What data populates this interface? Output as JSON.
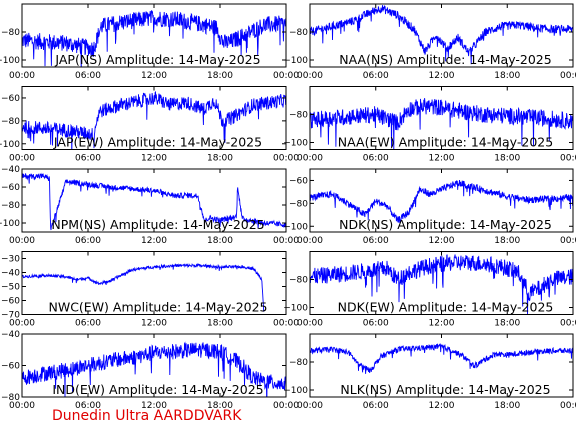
{
  "footer": "Dunedin Ultra AARDDVARK",
  "chart_data": [
    {
      "type": "line",
      "title": "JAP(NS) Amplitude: 14-May-2025",
      "xlim": [
        0,
        24
      ],
      "xticks": [
        "00:00",
        "06:00",
        "12:00",
        "18:00",
        "00:00"
      ],
      "ylim": [
        -105,
        -60
      ],
      "yticks": [
        -100,
        -80
      ],
      "color": "#0000ff",
      "series": [
        {
          "x": [
            0,
            4,
            6.5,
            7.2,
            9,
            12,
            14,
            16,
            17.7,
            18.3,
            19,
            20,
            22,
            24
          ],
          "y": [
            -86,
            -88,
            -92,
            -76,
            -73,
            -70,
            -71,
            -74,
            -77,
            -88,
            -87,
            -83,
            -75,
            -74
          ],
          "noise": 6
        }
      ]
    },
    {
      "type": "line",
      "title": "NAA(NS) Amplitude: 14-May-2025",
      "xlim": [
        0,
        24
      ],
      "xticks": [
        "00:00",
        "06:00",
        "12:00",
        "18:00",
        "00:00"
      ],
      "ylim": [
        -105,
        -60
      ],
      "yticks": [
        -100,
        -80
      ],
      "color": "#0000ff",
      "series": [
        {
          "x": [
            0,
            2,
            4,
            5.5,
            6.5,
            8,
            9.5,
            10.5,
            11.5,
            12.5,
            13.5,
            14.5,
            16,
            17.5,
            19,
            20.5,
            22,
            24
          ],
          "y": [
            -80,
            -76,
            -72,
            -66,
            -63,
            -68,
            -78,
            -94,
            -82,
            -92,
            -84,
            -95,
            -80,
            -76,
            -75,
            -77,
            -78,
            -78
          ],
          "noise": 3
        }
      ]
    },
    {
      "type": "line",
      "title": "JAP(EW) Amplitude: 14-May-2025",
      "xlim": [
        0,
        24
      ],
      "xticks": [
        "00:00",
        "06:00",
        "12:00",
        "18:00",
        "00:00"
      ],
      "ylim": [
        -105,
        -50
      ],
      "yticks": [
        -100,
        -80,
        -60
      ],
      "color": "#0000ff",
      "series": [
        {
          "x": [
            0,
            4,
            6.5,
            7,
            9,
            12,
            13.5,
            15,
            16.5,
            17.5,
            18.2,
            19,
            21,
            24
          ],
          "y": [
            -85,
            -88,
            -92,
            -72,
            -66,
            -60,
            -66,
            -64,
            -70,
            -62,
            -80,
            -78,
            -66,
            -62
          ],
          "noise": 6
        }
      ]
    },
    {
      "type": "line",
      "title": "NAA(EW) Amplitude: 14-May-2025",
      "xlim": [
        0,
        24
      ],
      "xticks": [
        "00:00",
        "06:00",
        "12:00",
        "18:00",
        "00:00"
      ],
      "ylim": [
        -105,
        -60
      ],
      "yticks": [
        -100,
        -80
      ],
      "color": "#0000ff",
      "series": [
        {
          "x": [
            0,
            3,
            6,
            8,
            9,
            10.5,
            12,
            14,
            16,
            18,
            20,
            22,
            24
          ],
          "y": [
            -84,
            -82,
            -80,
            -86,
            -76,
            -74,
            -75,
            -78,
            -80,
            -81,
            -82,
            -83,
            -85
          ],
          "noise": 6
        }
      ]
    },
    {
      "type": "line",
      "title": "NPM(NS) Amplitude: 14-May-2025",
      "xlim": [
        0,
        24
      ],
      "xticks": [
        "00:00",
        "06:00",
        "12:00",
        "18:00",
        "00:00"
      ],
      "ylim": [
        -110,
        -40
      ],
      "yticks": [
        -100,
        -80,
        -60,
        -40
      ],
      "color": "#0000ff",
      "series": [
        {
          "x": [
            0,
            2,
            2.5,
            2.6,
            4,
            6,
            8,
            10,
            12,
            13,
            14,
            15,
            16,
            16.6,
            17,
            18,
            19.5,
            19.6,
            20,
            22,
            24
          ],
          "y": [
            -48,
            -48,
            -51,
            -108,
            -54,
            -57,
            -60,
            -62,
            -64,
            -67,
            -70,
            -69,
            -70,
            -98,
            -94,
            -97,
            -93,
            -58,
            -95,
            -100,
            -102
          ],
          "noise": 3
        }
      ]
    },
    {
      "type": "line",
      "title": "NDK(NS) Amplitude: 14-May-2025",
      "xlim": [
        0,
        24
      ],
      "xticks": [
        "00:00",
        "06:00",
        "12:00",
        "18:00",
        "00:00"
      ],
      "ylim": [
        -105,
        -50
      ],
      "yticks": [
        -100,
        -80,
        -60
      ],
      "color": "#0000ff",
      "series": [
        {
          "x": [
            0,
            2,
            3.5,
            5,
            6,
            7,
            8,
            9,
            10,
            11,
            12,
            13.5,
            15,
            16.5,
            18,
            20,
            22,
            24
          ],
          "y": [
            -75,
            -72,
            -80,
            -90,
            -78,
            -82,
            -95,
            -88,
            -68,
            -72,
            -68,
            -62,
            -66,
            -70,
            -74,
            -77,
            -76,
            -75
          ],
          "noise": 3
        }
      ]
    },
    {
      "type": "line",
      "title": "NWC(EW) Amplitude: 14-May-2025",
      "xlim": [
        0,
        24
      ],
      "xticks": [
        "00:00",
        "06:00",
        "12:00",
        "18:00",
        "00:00"
      ],
      "ylim": [
        -70,
        -25
      ],
      "yticks": [
        -70,
        -60,
        -50,
        -40,
        -30
      ],
      "color": "#0000ff",
      "series": [
        {
          "x": [
            0,
            2,
            4,
            5,
            6,
            7,
            8,
            9,
            10,
            12,
            14,
            16,
            18,
            20,
            21,
            21.8,
            22
          ],
          "y": [
            -43,
            -42,
            -43,
            -45,
            -44,
            -48,
            -46,
            -42,
            -38,
            -36,
            -35,
            -35,
            -36,
            -36,
            -37,
            -45,
            -70
          ],
          "noise": 1
        }
      ]
    },
    {
      "type": "line",
      "title": "NDK(EW) Amplitude: 14-May-2025",
      "xlim": [
        0,
        24
      ],
      "xticks": [
        "00:00",
        "06:00",
        "12:00",
        "18:00",
        "00:00"
      ],
      "ylim": [
        -105,
        -60
      ],
      "yticks": [
        -100,
        -80
      ],
      "color": "#0000ff",
      "series": [
        {
          "x": [
            0,
            3,
            5,
            7,
            8,
            9,
            11,
            13,
            15,
            17,
            18,
            19,
            20,
            21,
            22,
            24
          ],
          "y": [
            -78,
            -76,
            -74,
            -72,
            -80,
            -75,
            -70,
            -68,
            -68,
            -70,
            -72,
            -75,
            -90,
            -86,
            -80,
            -78
          ],
          "noise": 6
        }
      ]
    },
    {
      "type": "line",
      "title": "IND(EW) Amplitude: 14-May-2025",
      "xlim": [
        0,
        24
      ],
      "xticks": [
        "00:00",
        "06:00",
        "12:00",
        "18:00",
        "00:00"
      ],
      "ylim": [
        -80,
        -40
      ],
      "yticks": [
        -80,
        -60,
        -40
      ],
      "color": "#0000ff",
      "series": [
        {
          "x": [
            0,
            2,
            4,
            6,
            8,
            10,
            12,
            14,
            16,
            18,
            19,
            20,
            21,
            22,
            24
          ],
          "y": [
            -68,
            -65,
            -63,
            -60,
            -57,
            -55,
            -52,
            -51,
            -50,
            -51,
            -55,
            -60,
            -68,
            -70,
            -72
          ],
          "noise": 5
        }
      ]
    },
    {
      "type": "line",
      "title": "NLK(NS) Amplitude: 14-May-2025",
      "xlim": [
        0,
        24
      ],
      "xticks": [
        "00:00",
        "06:00",
        "12:00",
        "18:00",
        "00:00"
      ],
      "ylim": [
        -105,
        -60
      ],
      "yticks": [
        -100,
        -80
      ],
      "color": "#0000ff",
      "series": [
        {
          "x": [
            0,
            2,
            3.5,
            4.5,
            5.5,
            6.5,
            8,
            10,
            12,
            13,
            14,
            15,
            16,
            17,
            18,
            20,
            22,
            24
          ],
          "y": [
            -72,
            -71,
            -73,
            -82,
            -86,
            -76,
            -71,
            -70,
            -69,
            -72,
            -76,
            -83,
            -78,
            -74,
            -75,
            -73,
            -72,
            -72
          ],
          "noise": 2
        }
      ]
    }
  ]
}
